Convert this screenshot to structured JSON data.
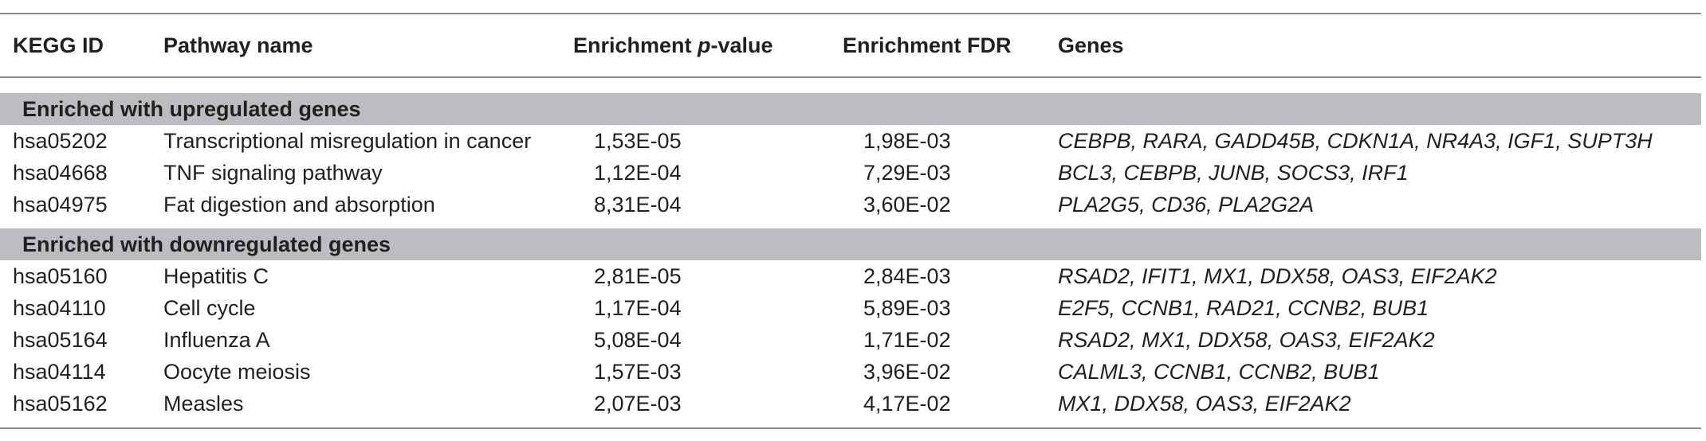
{
  "header": {
    "kegg_id": "KEGG ID",
    "pathway_name": "Pathway name",
    "p_value_prefix": "Enrichment ",
    "p_value_italic": "p",
    "p_value_suffix": "-value",
    "fdr": "Enrichment FDR",
    "genes": "Genes"
  },
  "sections": [
    {
      "title": "Enriched with upregulated genes",
      "rows": [
        {
          "id": "hsa05202",
          "name": "Transcriptional misregulation in cancer",
          "p": "1,53E-05",
          "fdr": "1,98E-03",
          "genes": "CEBPB, RARA, GADD45B, CDKN1A, NR4A3, IGF1, SUPT3H"
        },
        {
          "id": "hsa04668",
          "name": "TNF signaling pathway",
          "p": "1,12E-04",
          "fdr": "7,29E-03",
          "genes": "BCL3, CEBPB, JUNB, SOCS3, IRF1"
        },
        {
          "id": "hsa04975",
          "name": "Fat digestion and absorption",
          "p": "8,31E-04",
          "fdr": "3,60E-02",
          "genes": "PLA2G5, CD36, PLA2G2A"
        }
      ]
    },
    {
      "title": "Enriched with downregulated genes",
      "rows": [
        {
          "id": "hsa05160",
          "name": "Hepatitis C",
          "p": "2,81E-05",
          "fdr": "2,84E-03",
          "genes": "RSAD2, IFIT1, MX1, DDX58, OAS3, EIF2AK2"
        },
        {
          "id": "hsa04110",
          "name": "Cell cycle",
          "p": "1,17E-04",
          "fdr": "5,89E-03",
          "genes": "E2F5, CCNB1, RAD21, CCNB2, BUB1"
        },
        {
          "id": "hsa05164",
          "name": "Influenza A",
          "p": "5,08E-04",
          "fdr": "1,71E-02",
          "genes": "RSAD2, MX1, DDX58, OAS3, EIF2AK2"
        },
        {
          "id": "hsa04114",
          "name": "Oocyte meiosis",
          "p": "1,57E-03",
          "fdr": "3,96E-02",
          "genes": "CALML3, CCNB1, CCNB2, BUB1"
        },
        {
          "id": "hsa05162",
          "name": "Measles",
          "p": "2,07E-03",
          "fdr": "4,17E-02",
          "genes": "MX1, DDX58, OAS3, EIF2AK2"
        }
      ]
    }
  ]
}
